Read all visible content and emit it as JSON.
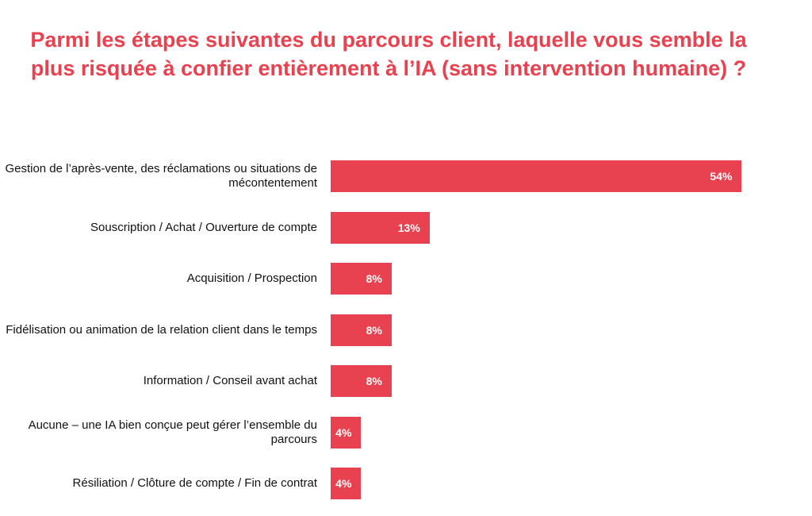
{
  "chart_data": {
    "type": "bar",
    "orientation": "horizontal",
    "title": "Parmi les étapes suivantes du parcours client, laquelle vous semble la plus risquée à confier entièrement à l’IA (sans intervention humaine) ?",
    "categories": [
      "Gestion de l’après-vente, des réclamations ou situations de mécontentement",
      "Souscription / Achat / Ouverture de compte",
      "Acquisition / Prospection",
      "Fidélisation ou animation de la relation client dans le temps",
      "Information / Conseil avant achat",
      "Aucune – une IA bien conçue peut gérer l’ensemble du parcours",
      "Résiliation / Clôture de compte / Fin de contrat"
    ],
    "values": [
      54,
      13,
      8,
      8,
      8,
      4,
      4
    ],
    "value_labels": [
      "54%",
      "13%",
      "8%",
      "8%",
      "8%",
      "4%",
      "4%"
    ],
    "color": "#e8414f"
  }
}
